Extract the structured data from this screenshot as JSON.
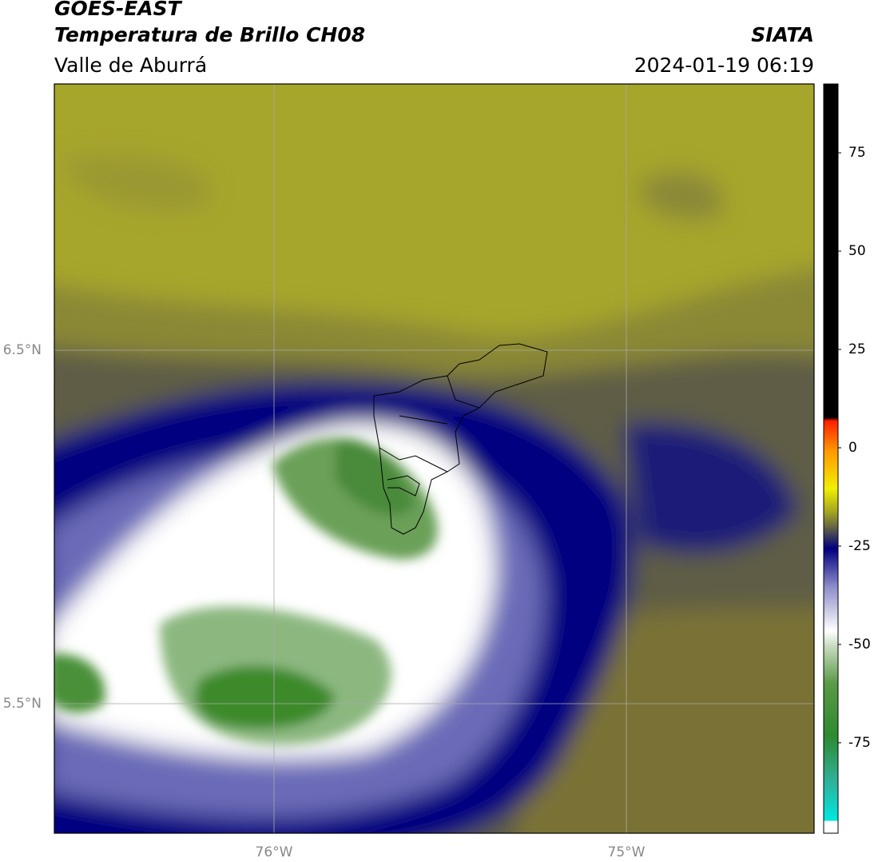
{
  "header": {
    "title": "GOES-EAST",
    "subtitle": "Temperatura de Brillo CH08",
    "region": "Valle de Aburrá",
    "source": "SIATA",
    "datetime": "2024-01-19 06:19"
  },
  "map": {
    "xticks": [
      "76°W",
      "75°W"
    ],
    "yticks": [
      "6.5°N",
      "5.5°N"
    ]
  },
  "colorbar": {
    "lim": [
      -98,
      92.5
    ],
    "ticks": [
      75,
      50,
      25,
      0,
      -25,
      -50,
      -75
    ]
  }
}
